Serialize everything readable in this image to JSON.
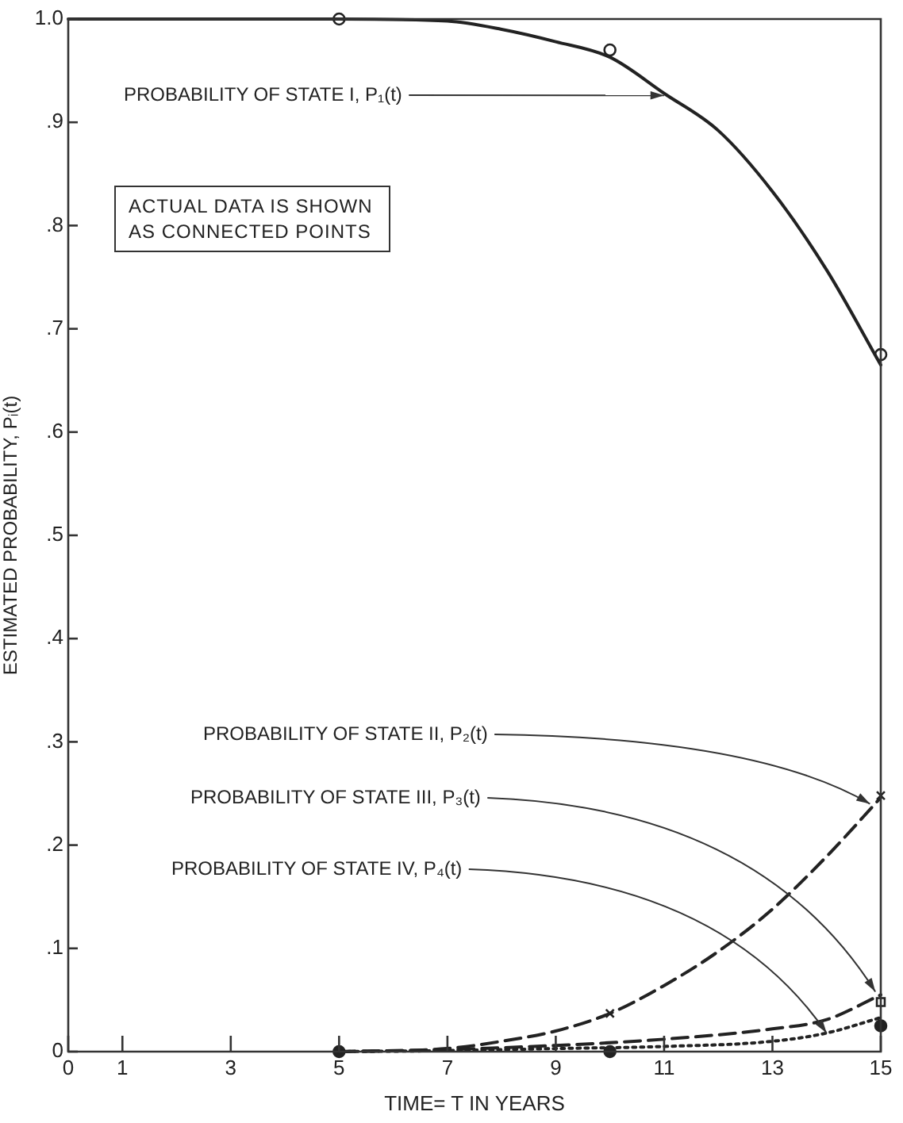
{
  "chart_data": {
    "type": "line",
    "xlabel": "TIME= T IN YEARS",
    "ylabel": "ESTIMATED PROBABILITY, Pᵢ(t)",
    "xlim": [
      0,
      15
    ],
    "xticks": [
      0,
      1,
      3,
      5,
      7,
      9,
      11,
      13,
      15
    ],
    "ylim": [
      0,
      1.0
    ],
    "yticks": [
      {
        "value": 0,
        "label": "0"
      },
      {
        "value": 0.1,
        "label": ".1"
      },
      {
        "value": 0.2,
        "label": ".2"
      },
      {
        "value": 0.3,
        "label": ".3"
      },
      {
        "value": 0.4,
        "label": ".4"
      },
      {
        "value": 0.5,
        "label": ".5"
      },
      {
        "value": 0.6,
        "label": ".6"
      },
      {
        "value": 0.7,
        "label": ".7"
      },
      {
        "value": 0.8,
        "label": ".8"
      },
      {
        "value": 0.9,
        "label": ".9"
      },
      {
        "value": 1.0,
        "label": "1.0"
      }
    ],
    "grid": false,
    "legend": false,
    "series": [
      {
        "type": "line",
        "color": "#222222",
        "line_style": "solid",
        "marker": "none",
        "x": [
          0,
          1,
          3,
          5,
          7,
          8,
          9,
          10,
          11,
          12,
          13,
          14,
          15
        ],
        "values": [
          1,
          1,
          1,
          1,
          0.998,
          0.99,
          0.978,
          0.963,
          0.928,
          0.892,
          0.833,
          0.757,
          0.665
        ]
      },
      {
        "type": "line",
        "color": "#222222",
        "line_style": "dashed",
        "marker": "none",
        "x": [
          5,
          7,
          8,
          9,
          10,
          11,
          12,
          13,
          14,
          15
        ],
        "values": [
          0,
          0.003,
          0.01,
          0.02,
          0.037,
          0.064,
          0.097,
          0.138,
          0.189,
          0.246
        ]
      },
      {
        "type": "line",
        "color": "#222222",
        "line_style": "dashed",
        "marker": "none",
        "x": [
          5,
          7,
          9,
          11,
          13,
          14,
          15
        ],
        "values": [
          0,
          0.002,
          0.006,
          0.012,
          0.022,
          0.031,
          0.055
        ]
      },
      {
        "type": "line",
        "color": "#222222",
        "line_style": "dotted",
        "marker": "none",
        "x": [
          5,
          7,
          9,
          11,
          13,
          14,
          15
        ],
        "values": [
          0,
          0.001,
          0.003,
          0.005,
          0.01,
          0.018,
          0.033
        ]
      },
      {
        "type": "scatter",
        "color": "#222222",
        "marker": "circle",
        "x": [
          5,
          10,
          15
        ],
        "values": [
          1.0,
          0.97,
          0.675
        ]
      },
      {
        "type": "scatter",
        "color": "#222222",
        "marker": "cross",
        "x": [
          10,
          15
        ],
        "values": [
          0.037,
          0.248
        ]
      },
      {
        "type": "scatter",
        "color": "#222222",
        "marker": "square",
        "x": [
          15
        ],
        "values": [
          0.048
        ]
      },
      {
        "type": "scatter",
        "color": "#222222",
        "marker": "circle",
        "x": [
          5,
          10,
          15
        ],
        "values": [
          0,
          0,
          0.025
        ]
      }
    ],
    "annotations": [
      "ACTUAL DATA IS SHOWN AS CONNECTED POINTS",
      {
        "text": "PROBABILITY OF STATE I, P₁(t)",
        "x": 11,
        "y": 0.926
      },
      {
        "text": "PROBABILITY OF STATE II, P₂(t)",
        "x": 14.8,
        "y": 0.24
      },
      {
        "text": "PROBABILITY OF STATE III, P₃(t)",
        "x": 14.9,
        "y": 0.058
      },
      {
        "text": "PROBABILITY OF STATE IV, P₄(t)",
        "x": 14,
        "y": 0.018
      }
    ]
  }
}
